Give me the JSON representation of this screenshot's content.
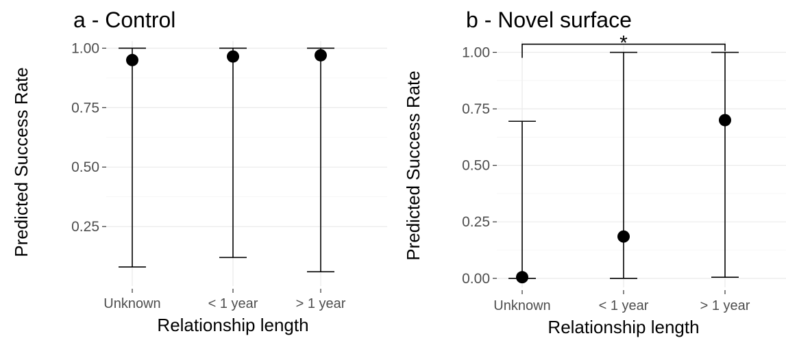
{
  "chart_data": [
    {
      "type": "scatter",
      "title": "a - Control",
      "xlabel": "Relationship length",
      "ylabel": "Predicted Success Rate",
      "categories": [
        "Unknown",
        "< 1 year",
        "> 1 year"
      ],
      "ylim": [
        0.0,
        1.03
      ],
      "yticks": [
        0.25,
        0.5,
        0.75,
        1.0
      ],
      "ytick_labels": [
        "0.25",
        "0.50",
        "0.75",
        "1.00"
      ],
      "grid": true,
      "points": [
        {
          "category": "Unknown",
          "y": 0.95,
          "lower": 0.08,
          "upper": 1.0
        },
        {
          "category": "< 1 year",
          "y": 0.965,
          "lower": 0.12,
          "upper": 1.0
        },
        {
          "category": "> 1 year",
          "y": 0.97,
          "lower": 0.06,
          "upper": 1.0
        }
      ]
    },
    {
      "type": "scatter",
      "title": "b - Novel surface",
      "xlabel": "Relationship length",
      "ylabel": "Predicted Success Rate",
      "categories": [
        "Unknown",
        "< 1 year",
        "> 1 year"
      ],
      "ylim": [
        -0.04,
        1.05
      ],
      "yticks": [
        0.0,
        0.25,
        0.5,
        0.75,
        1.0
      ],
      "ytick_labels": [
        "0.00",
        "0.25",
        "0.50",
        "0.75",
        "1.00"
      ],
      "grid": true,
      "points": [
        {
          "category": "Unknown",
          "y": 0.005,
          "lower": 0.0,
          "upper": 0.695
        },
        {
          "category": "< 1 year",
          "y": 0.185,
          "lower": 0.0,
          "upper": 1.0
        },
        {
          "category": "> 1 year",
          "y": 0.7,
          "lower": 0.005,
          "upper": 1.0
        }
      ],
      "significance": {
        "from": "Unknown",
        "to": "> 1 year",
        "label": "*"
      }
    }
  ]
}
